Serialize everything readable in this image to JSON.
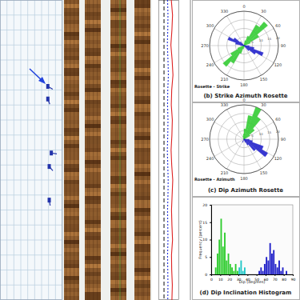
{
  "chart_data": [
    {
      "type": "tadpole",
      "x": [
        69,
        69,
        74,
        71,
        71
      ],
      "values": [
        28.8,
        33,
        51,
        55.5,
        66.7
      ],
      "azimuth": [
        120,
        160,
        100,
        140,
        170
      ],
      "xlim": [
        0,
        90
      ],
      "xticks": [
        0,
        10,
        20,
        30,
        40,
        50,
        60,
        70,
        80,
        90
      ],
      "ylim": [
        0,
        100
      ],
      "yticks": [
        0,
        5,
        10,
        15,
        20,
        25,
        30,
        35,
        40,
        45,
        50,
        55,
        60,
        65,
        70,
        75,
        80,
        85,
        90,
        95,
        100
      ],
      "grid": true,
      "tick_labels": false,
      "color": "#2233aa",
      "marker": "tadpole"
    },
    {
      "type": "line",
      "x": [
        0,
        5,
        10,
        15,
        20,
        25,
        30,
        35,
        40,
        45,
        50,
        55,
        60,
        65,
        70,
        75,
        80,
        85,
        90,
        95,
        100
      ],
      "xlim": [
        0,
        100
      ],
      "ylim": [
        0,
        10
      ],
      "tick_labels": false,
      "series": [
        {
          "color": "#222222",
          "line_style": "dashed",
          "values": [
            2.7,
            2.7,
            2.7,
            2.7,
            2.7,
            2.7,
            2.7,
            2.7,
            2.7,
            2.7,
            2.7,
            2.7,
            2.7,
            2.7,
            2.7,
            2.7,
            2.7,
            2.7,
            2.7,
            2.7,
            2.7
          ]
        },
        {
          "color": "#2233dd",
          "line_style": "dotted",
          "values": [
            4.4,
            4.6,
            4.5,
            4.3,
            4.6,
            4.8,
            4.5,
            4.4,
            4.6,
            4.5,
            4.3,
            4.5,
            4.7,
            4.6,
            4.4,
            4.5,
            4.6,
            4.4,
            4.5,
            4.6,
            4.5
          ]
        },
        {
          "color": "#dd2222",
          "line_style": "solid",
          "values": [
            6.2,
            6.8,
            6.5,
            6.0,
            6.6,
            7.0,
            6.4,
            6.2,
            6.7,
            6.5,
            6.1,
            6.4,
            6.9,
            6.6,
            6.3,
            6.5,
            6.8,
            6.3,
            6.4,
            6.7,
            6.5
          ]
        }
      ]
    },
    {
      "type": "rosette",
      "title": "(b) Strike Azimuth Rosette",
      "subtitle": "Rosette - Strike",
      "x": [
        0,
        10,
        20,
        30,
        40,
        50,
        60,
        70,
        80,
        90,
        100,
        110,
        120,
        130,
        140,
        150,
        160,
        170,
        180,
        190,
        200,
        210,
        220,
        230,
        240,
        250,
        260,
        270,
        280,
        290,
        300,
        310,
        320,
        330,
        340,
        350
      ],
      "xlim": [
        0,
        360
      ],
      "xticks": [
        0,
        30,
        60,
        90,
        120,
        150,
        180,
        210,
        240,
        270,
        300,
        330
      ],
      "ylim": [
        0,
        20
      ],
      "yticks": [
        5,
        10,
        15,
        20
      ],
      "grid": true,
      "series": [
        {
          "color": "#33cc33",
          "values": [
            0,
            3,
            6,
            14,
            18,
            10,
            4,
            1,
            0,
            0,
            0,
            0,
            0,
            0,
            0,
            0,
            0,
            1,
            0,
            2,
            5,
            12,
            16,
            9,
            4,
            1,
            0,
            0,
            0,
            0,
            0,
            0,
            0,
            0,
            0,
            0
          ]
        },
        {
          "color": "#2222cc",
          "values": [
            0,
            0,
            0,
            0,
            0,
            0,
            0,
            0,
            0,
            3,
            6,
            12,
            8,
            4,
            0,
            0,
            0,
            0,
            0,
            0,
            0,
            0,
            0,
            0,
            0,
            0,
            0,
            2,
            5,
            10,
            7,
            3,
            0,
            0,
            0,
            0
          ]
        }
      ]
    },
    {
      "type": "rosette",
      "title": "(c) Dip Azimuth Rosette",
      "subtitle": "Rosette - Azimuth",
      "x": [
        0,
        10,
        20,
        30,
        40,
        50,
        60,
        70,
        80,
        90,
        100,
        110,
        120,
        130,
        140,
        150,
        160,
        170,
        180,
        190,
        200,
        210,
        220,
        230,
        240,
        250,
        260,
        270,
        280,
        290,
        300,
        310,
        320,
        330,
        340,
        350
      ],
      "xlim": [
        0,
        360
      ],
      "xticks": [
        0,
        30,
        60,
        90,
        120,
        150,
        180,
        210,
        240,
        270,
        300,
        330
      ],
      "ylim": [
        0,
        20
      ],
      "yticks": [
        5,
        10,
        15,
        20
      ],
      "grid": true,
      "series": [
        {
          "color": "#33cc33",
          "values": [
            6,
            14,
            20,
            15,
            8,
            4,
            0,
            0,
            0,
            0,
            0,
            0,
            0,
            0,
            0,
            0,
            0,
            0,
            0,
            0,
            0,
            0,
            0,
            0,
            0,
            0,
            0,
            0,
            0,
            0,
            0,
            0,
            0,
            0,
            2,
            3
          ]
        },
        {
          "color": "#2222cc",
          "values": [
            0,
            0,
            0,
            0,
            0,
            0,
            0,
            0,
            0,
            3,
            5,
            12,
            16,
            9,
            4,
            2,
            0,
            0,
            0,
            0,
            2,
            0,
            0,
            0,
            0,
            0,
            0,
            0,
            0,
            0,
            0,
            0,
            0,
            0,
            0,
            0
          ]
        }
      ]
    },
    {
      "type": "histogram",
      "title": "(d) Dip Inclination Histogram",
      "x_label": "Dip (degrees)",
      "y_label": "Frequency (percent)",
      "bins": [
        0,
        2,
        4,
        6,
        8,
        10,
        12,
        14,
        16,
        18,
        20,
        22,
        24,
        26,
        28,
        30,
        32,
        34,
        36,
        38,
        40,
        42,
        44,
        46,
        48,
        50,
        52,
        54,
        56,
        58,
        60,
        62,
        64,
        66,
        68,
        70,
        72,
        74,
        76,
        78,
        80,
        82,
        84,
        86,
        88,
        90
      ],
      "values": [
        0,
        0,
        2,
        6,
        10,
        16,
        8,
        12,
        4,
        6,
        3,
        2,
        1,
        3,
        1,
        2,
        4,
        1,
        2,
        0,
        0,
        0,
        0,
        0,
        0,
        0,
        1,
        2,
        1,
        3,
        5,
        4,
        9,
        6,
        7,
        3,
        2,
        4,
        1,
        2,
        0,
        1,
        0,
        0,
        0
      ],
      "colors": [
        "#2ecc2e",
        "#2ecc2e",
        "#2ecc2e",
        "#2ecc2e",
        "#2ecc2e",
        "#2ecc2e",
        "#2ecc2e",
        "#2ecc2e",
        "#2ecc2e",
        "#2ecc2e",
        "#2ecc2e",
        "#2ecc2e",
        "#2ecc2e",
        "#2ecc2e",
        "#2ecc2e",
        "#22c8c8",
        "#22c8c8",
        "#22c8c8",
        "#22c8c8",
        "#22c8c8",
        "#1f1fc8",
        "#1f1fc8",
        "#1f1fc8",
        "#1f1fc8",
        "#1f1fc8",
        "#1f1fc8",
        "#1f1fc8",
        "#1f1fc8",
        "#1f1fc8",
        "#1f1fc8",
        "#1f1fc8",
        "#1f1fc8",
        "#1f1fc8",
        "#1f1fc8",
        "#1f1fc8",
        "#1f1fc8",
        "#1f1fc8",
        "#1f1fc8",
        "#1f1fc8",
        "#1f1fc8",
        "#1f1fc8",
        "#1f1fc8",
        "#1f1fc8",
        "#1f1fc8",
        "#1f1fc8"
      ],
      "xlim": [
        0,
        90
      ],
      "xticks": [
        0,
        10,
        20,
        30,
        40,
        50,
        60,
        70,
        80,
        90
      ],
      "ylim": [
        0,
        20
      ],
      "yticks": [
        0,
        5,
        10,
        15,
        20
      ],
      "grid": false
    }
  ]
}
